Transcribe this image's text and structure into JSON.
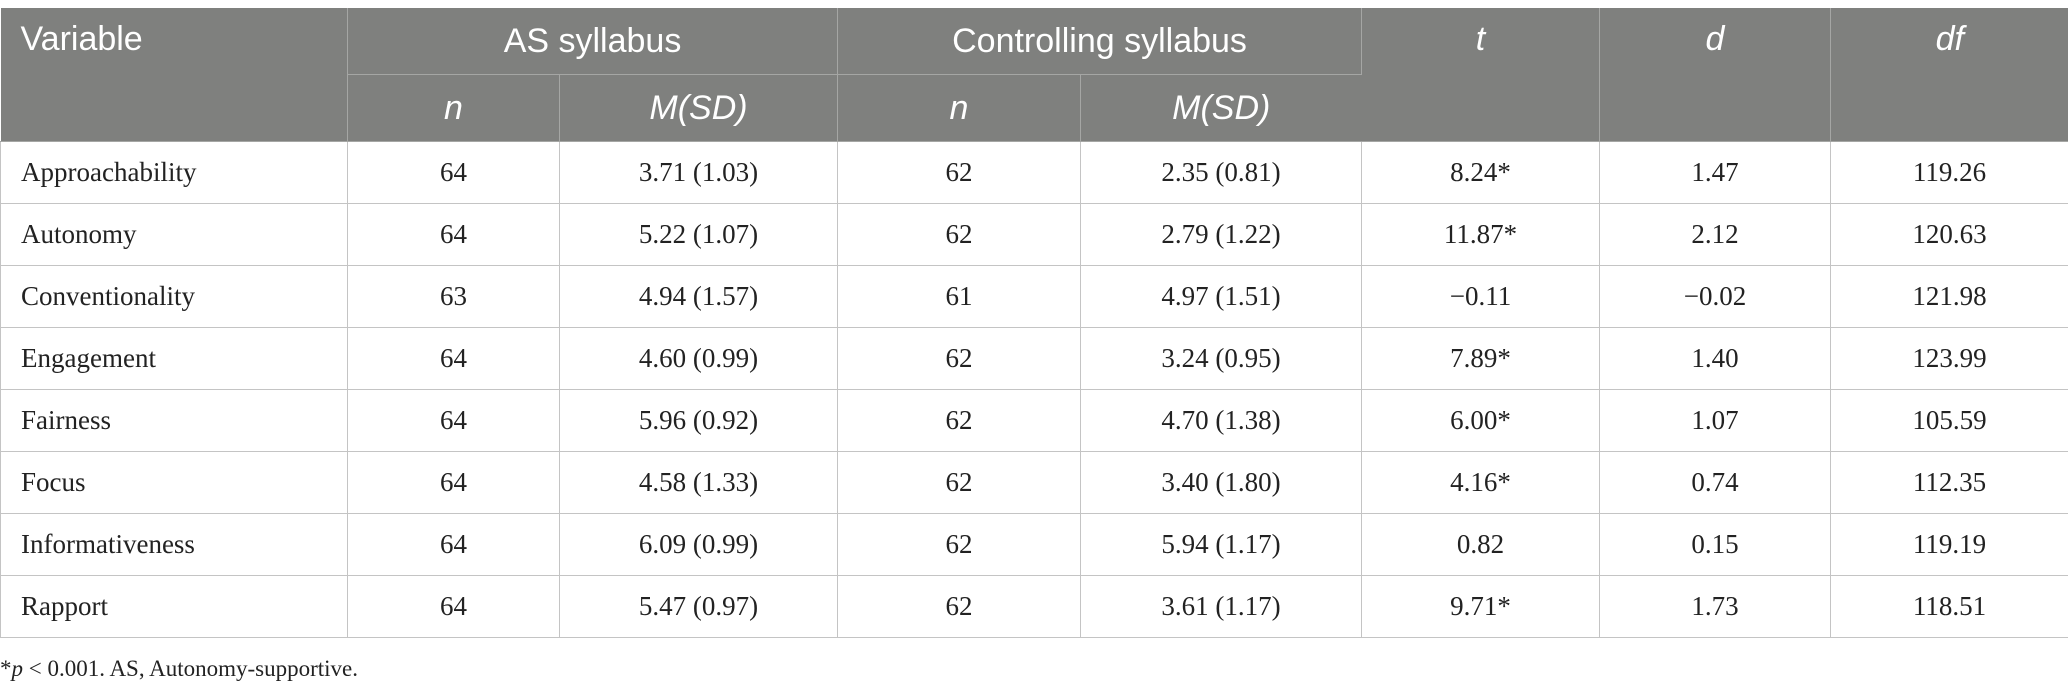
{
  "table": {
    "header": {
      "variable": "Variable",
      "group1": "AS syllabus",
      "group2": "Controlling syllabus",
      "t": "t",
      "d": "d",
      "df": "df",
      "n": "n",
      "msd": "M(SD)"
    },
    "rows": [
      {
        "variable": "Approachability",
        "n1": "64",
        "m1": "3.71 (1.03)",
        "n2": "62",
        "m2": "2.35 (0.81)",
        "t": "8.24*",
        "d": "1.47",
        "df": "119.26"
      },
      {
        "variable": "Autonomy",
        "n1": "64",
        "m1": "5.22 (1.07)",
        "n2": "62",
        "m2": "2.79 (1.22)",
        "t": "11.87*",
        "d": "2.12",
        "df": "120.63"
      },
      {
        "variable": "Conventionality",
        "n1": "63",
        "m1": "4.94 (1.57)",
        "n2": "61",
        "m2": "4.97 (1.51)",
        "t": "−0.11",
        "d": "−0.02",
        "df": "121.98"
      },
      {
        "variable": "Engagement",
        "n1": "64",
        "m1": "4.60 (0.99)",
        "n2": "62",
        "m2": "3.24 (0.95)",
        "t": "7.89*",
        "d": "1.40",
        "df": "123.99"
      },
      {
        "variable": "Fairness",
        "n1": "64",
        "m1": "5.96 (0.92)",
        "n2": "62",
        "m2": "4.70 (1.38)",
        "t": "6.00*",
        "d": "1.07",
        "df": "105.59"
      },
      {
        "variable": "Focus",
        "n1": "64",
        "m1": "4.58 (1.33)",
        "n2": "62",
        "m2": "3.40 (1.80)",
        "t": "4.16*",
        "d": "0.74",
        "df": "112.35"
      },
      {
        "variable": "Informativeness",
        "n1": "64",
        "m1": "6.09 (0.99)",
        "n2": "62",
        "m2": "5.94 (1.17)",
        "t": "0.82",
        "d": "0.15",
        "df": "119.19"
      },
      {
        "variable": "Rapport",
        "n1": "64",
        "m1": "5.47 (0.97)",
        "n2": "62",
        "m2": "3.61 (1.17)",
        "t": "9.71*",
        "d": "1.73",
        "df": "118.51"
      }
    ]
  },
  "footnote": {
    "star": "*",
    "p": "p",
    "rest": " < 0.001. AS, Autonomy-supportive."
  }
}
